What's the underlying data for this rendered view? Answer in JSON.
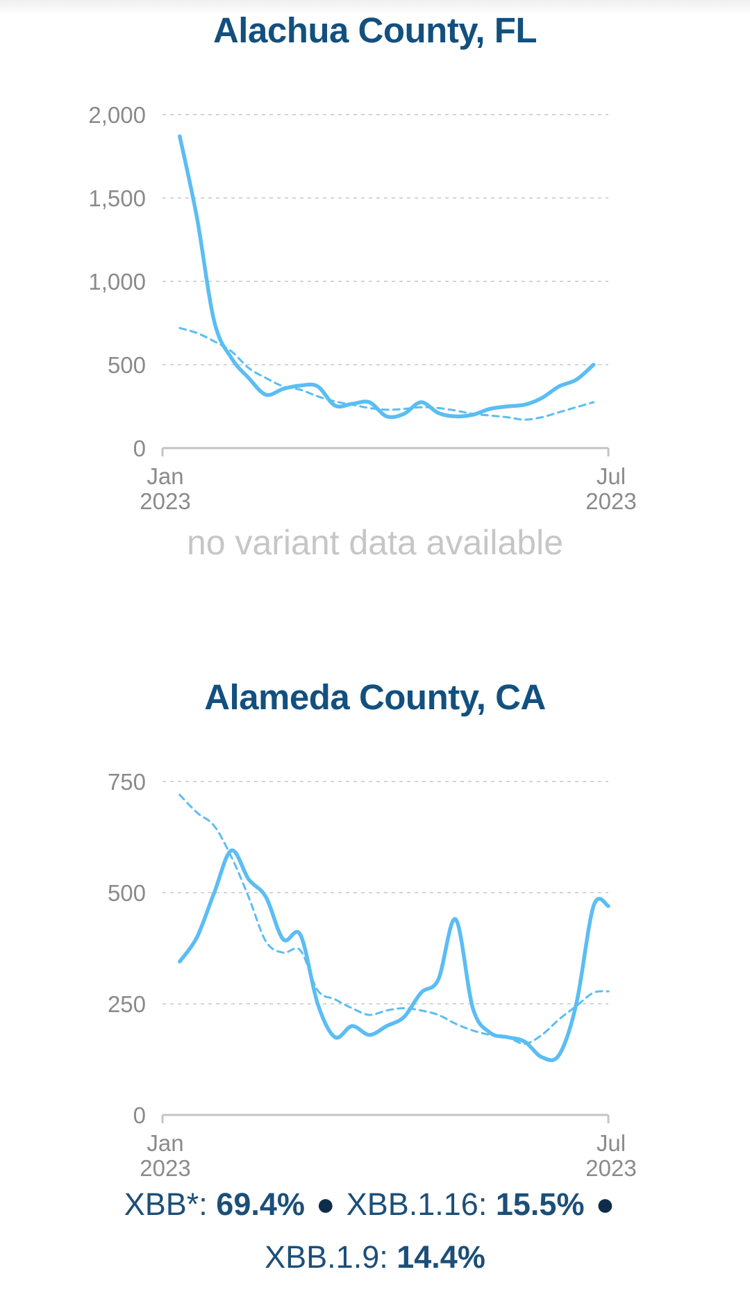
{
  "chart_data": [
    {
      "type": "line",
      "title": "Alachua County, FL",
      "x": [
        "2023-01-08",
        "2023-01-15",
        "2023-01-22",
        "2023-01-29",
        "2023-02-05",
        "2023-02-12",
        "2023-02-19",
        "2023-02-26",
        "2023-03-05",
        "2023-03-12",
        "2023-03-19",
        "2023-03-26",
        "2023-04-02",
        "2023-04-09",
        "2023-04-16",
        "2023-04-23",
        "2023-04-30",
        "2023-05-07",
        "2023-05-14",
        "2023-05-21",
        "2023-05-28",
        "2023-06-04",
        "2023-06-11",
        "2023-06-18",
        "2023-06-25"
      ],
      "x_ticks": [
        {
          "date": "2023-01-01",
          "label": [
            "Jan",
            "2023"
          ]
        },
        {
          "date": "2023-07-01",
          "label": [
            "Jul",
            "2023"
          ]
        }
      ],
      "x_range": [
        "2023-01-01",
        "2023-07-01"
      ],
      "ylim": [
        0,
        2000
      ],
      "y_ticks": [
        0,
        500,
        1000,
        1500,
        2000
      ],
      "y_tick_labels": [
        "0",
        "500",
        "1,000",
        "1,500",
        "2,000"
      ],
      "grid": "horizontal dashed",
      "series": [
        {
          "style": "solid",
          "color": "#5bbdf3",
          "values": [
            1870,
            1380,
            760,
            540,
            420,
            320,
            355,
            375,
            370,
            255,
            265,
            275,
            190,
            205,
            275,
            210,
            190,
            200,
            235,
            250,
            260,
            300,
            370,
            410,
            500
          ]
        },
        {
          "style": "dashed",
          "color": "#5bbdf3",
          "values": [
            720,
            690,
            640,
            580,
            480,
            420,
            370,
            350,
            310,
            280,
            260,
            240,
            230,
            235,
            245,
            240,
            225,
            205,
            195,
            185,
            170,
            185,
            215,
            245,
            275
          ]
        }
      ],
      "footer_text": "no variant data available"
    },
    {
      "type": "line",
      "title": "Alameda County, CA",
      "x": [
        "2023-01-08",
        "2023-01-15",
        "2023-01-22",
        "2023-01-29",
        "2023-02-05",
        "2023-02-12",
        "2023-02-19",
        "2023-02-26",
        "2023-03-05",
        "2023-03-12",
        "2023-03-19",
        "2023-03-26",
        "2023-04-02",
        "2023-04-09",
        "2023-04-16",
        "2023-04-23",
        "2023-04-30",
        "2023-05-07",
        "2023-05-14",
        "2023-05-21",
        "2023-05-28",
        "2023-06-04",
        "2023-06-11",
        "2023-06-18",
        "2023-06-25",
        "2023-07-01"
      ],
      "x_ticks": [
        {
          "date": "2023-01-01",
          "label": [
            "Jan",
            "2023"
          ]
        },
        {
          "date": "2023-07-01",
          "label": [
            "Jul",
            "2023"
          ]
        }
      ],
      "x_range": [
        "2023-01-01",
        "2023-07-01"
      ],
      "ylim": [
        0,
        750
      ],
      "y_ticks": [
        0,
        250,
        500,
        750
      ],
      "y_tick_labels": [
        "0",
        "250",
        "500",
        "750"
      ],
      "grid": "horizontal dashed",
      "series": [
        {
          "style": "solid",
          "color": "#5bbdf3",
          "values": [
            345,
            400,
            500,
            595,
            530,
            490,
            395,
            405,
            250,
            175,
            200,
            180,
            200,
            220,
            275,
            305,
            440,
            240,
            185,
            175,
            165,
            130,
            135,
            250,
            470,
            470
          ]
        },
        {
          "style": "dashed",
          "color": "#5bbdf3",
          "values": [
            720,
            680,
            650,
            580,
            490,
            390,
            365,
            370,
            280,
            260,
            240,
            225,
            235,
            240,
            235,
            225,
            205,
            190,
            180,
            175,
            160,
            180,
            215,
            245,
            275,
            278
          ]
        }
      ],
      "variants": [
        {
          "name": "XBB*",
          "value": "69.4%"
        },
        {
          "name": "XBB.1.16",
          "value": "15.5%"
        },
        {
          "name": "XBB.1.9",
          "value": "14.4%"
        }
      ]
    }
  ]
}
